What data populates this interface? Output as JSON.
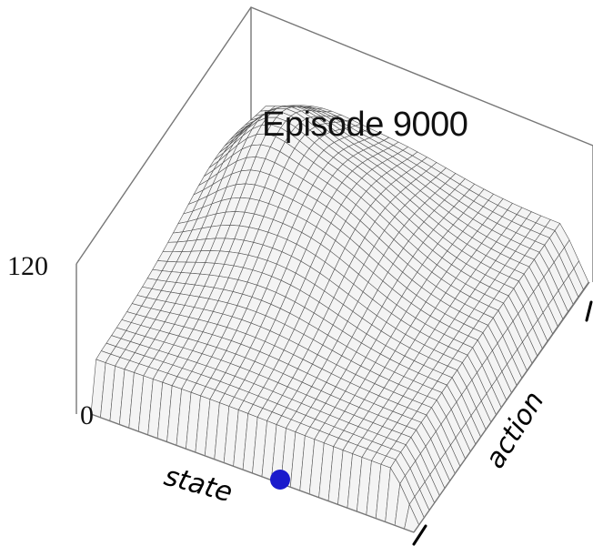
{
  "chart_data": {
    "type": "surface",
    "title": "Episode 9000",
    "xlabel": "state",
    "ylabel": "action",
    "zlim": [
      0,
      120
    ],
    "z_ticks": [
      "0",
      "120"
    ],
    "y_ticks": [
      "-1",
      "1"
    ],
    "marker": {
      "label": "",
      "color": "#1a1acc",
      "on_axis": "state",
      "position_fraction": 0.55
    },
    "colors": {
      "surface_fill": "#f4f4f4",
      "mesh": "#555555",
      "box": "#777777",
      "marker": "#1a1acc"
    }
  }
}
